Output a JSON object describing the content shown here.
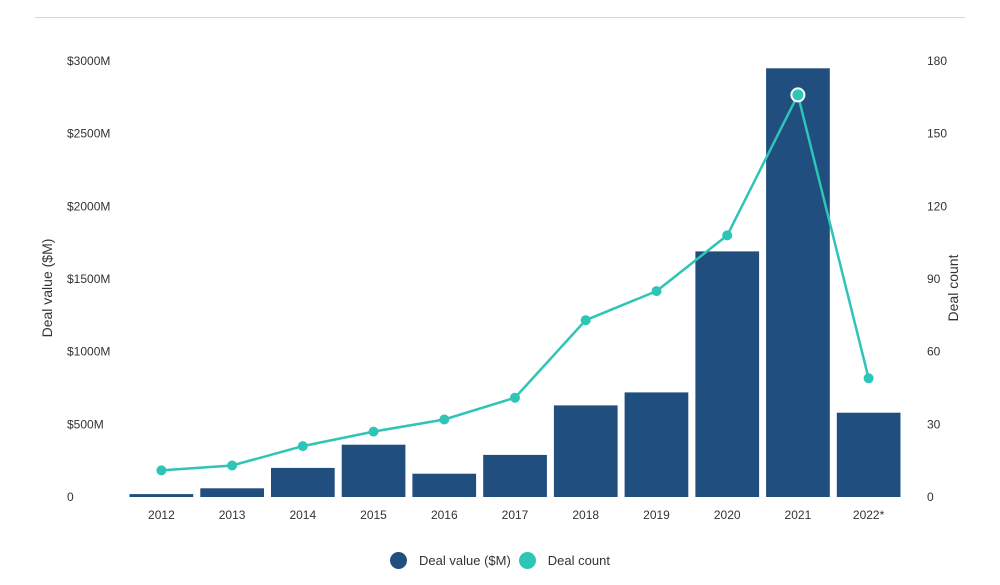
{
  "chart_data": {
    "type": "bar+line",
    "categories": [
      "2012",
      "2013",
      "2014",
      "2015",
      "2016",
      "2017",
      "2018",
      "2019",
      "2020",
      "2021",
      "2022*"
    ],
    "series": [
      {
        "name": "Deal value ($M)",
        "type": "bar",
        "axis": "left",
        "color": "#1f4e7f",
        "values": [
          20,
          60,
          200,
          360,
          160,
          290,
          630,
          720,
          1690,
          2950,
          580
        ]
      },
      {
        "name": "Deal count",
        "type": "line",
        "axis": "right",
        "color": "#2ec4b6",
        "values": [
          11,
          13,
          21,
          27,
          32,
          41,
          73,
          85,
          108,
          166,
          49
        ]
      }
    ],
    "xlabel": "",
    "ylabel_left": "Deal value ($M)",
    "ylabel_right": "Deal count",
    "ylim_left": [
      0,
      3000
    ],
    "ylim_right": [
      0,
      180
    ],
    "yticks_left": [
      "0",
      "$500M",
      "$1000M",
      "$1500M",
      "$2000M",
      "$2500M",
      "$3000M"
    ],
    "yticks_right": [
      "0",
      "30",
      "60",
      "90",
      "120",
      "150",
      "180"
    ],
    "highlight_index": 9,
    "grid": false,
    "legend_position": "bottom-center"
  }
}
